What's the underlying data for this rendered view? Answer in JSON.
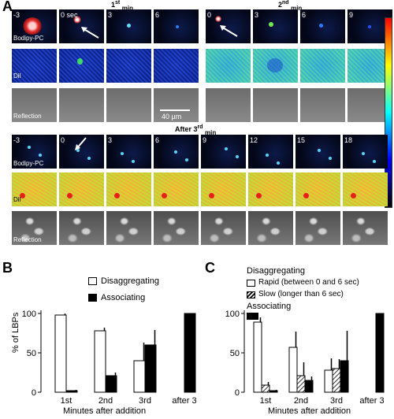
{
  "panel_a": {
    "letter": "A",
    "first_min": {
      "title_prefix": "1",
      "title_sup": "st",
      "title_suffix": "min",
      "times": [
        "-3",
        "0 sec",
        "3",
        "6"
      ]
    },
    "second_min": {
      "title_prefix": "2",
      "title_sup": "nd",
      "title_suffix": "min",
      "times": [
        "0",
        "3",
        "6",
        "9"
      ]
    },
    "after_third": {
      "title_prefix": "After 3",
      "title_sup": "rd",
      "title_suffix": "min",
      "times": [
        "-3",
        "0",
        "3",
        "6",
        "9",
        "12",
        "15",
        "18"
      ]
    },
    "row_labels": {
      "bodipy": "Bodipy-PC",
      "dil": "DiI",
      "reflection": "Reflection"
    },
    "scale_bar": "40 µm"
  },
  "panel_b": {
    "letter": "B",
    "ylabel": "% of LBPs",
    "xlabel": "Minutes after addition",
    "legend": {
      "disaggregating": "Disaggregating",
      "associating": "Associating"
    }
  },
  "panel_c": {
    "letter": "C",
    "xlabel": "Minutes after addition",
    "legend": {
      "disaggregating_header": "Disaggregating",
      "rapid": "Rapid (between 0 and 6 sec)",
      "slow": "Slow (longer than 6 sec)",
      "associating": "Associating"
    }
  },
  "chart_data": [
    {
      "type": "bar",
      "panel": "B",
      "categories": [
        "1st",
        "2nd",
        "3rd",
        "after 3"
      ],
      "ylabel": "% of LBPs",
      "xlabel": "Minutes after addition",
      "ylim": [
        0,
        100
      ],
      "yticks": [
        0,
        50,
        100
      ],
      "series": [
        {
          "name": "Disaggregating",
          "values": [
            98,
            78,
            40,
            0
          ],
          "errors": [
            2,
            4,
            23,
            0
          ]
        },
        {
          "name": "Associating",
          "values": [
            2,
            21,
            60,
            100
          ],
          "errors": [
            1,
            4,
            19,
            0
          ]
        }
      ]
    },
    {
      "type": "bar",
      "panel": "C",
      "categories": [
        "1st",
        "2nd",
        "3rd",
        "after 3"
      ],
      "xlabel": "Minutes after addition",
      "ylim": [
        0,
        100
      ],
      "yticks": [
        0,
        50,
        100
      ],
      "series": [
        {
          "name": "Rapid (between 0 and 6 sec)",
          "values": [
            89,
            57,
            28,
            0
          ],
          "errors": [
            6,
            20,
            15,
            0
          ]
        },
        {
          "name": "Slow (longer than 6 sec)",
          "values": [
            9,
            21,
            30,
            0
          ],
          "errors": [
            4,
            17,
            12,
            0
          ]
        },
        {
          "name": "Associating",
          "values": [
            2,
            15,
            40,
            100
          ],
          "errors": [
            1,
            5,
            38,
            0
          ]
        }
      ]
    }
  ],
  "colorbar": {
    "stops": [
      "#ff0000",
      "#ff8000",
      "#ffff00",
      "#80ff80",
      "#00ffff",
      "#0080ff",
      "#0000ff",
      "#000080",
      "#000000"
    ]
  }
}
